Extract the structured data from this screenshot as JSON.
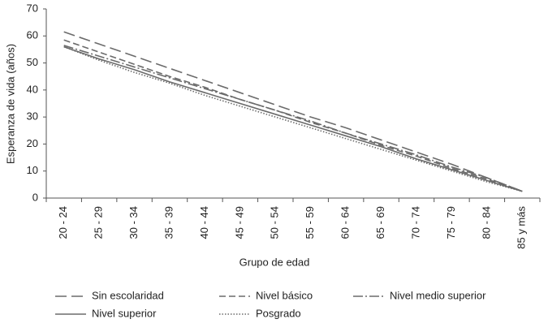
{
  "chart_data": {
    "type": "line",
    "x_label": "Grupo de edad",
    "y_label": "Esperanza de vida (años)",
    "categories": [
      "20 - 24",
      "25 - 29",
      "30 - 34",
      "35 - 39",
      "40 - 44",
      "45 - 49",
      "50 - 54",
      "55 - 59",
      "60 - 64",
      "65 - 69",
      "70 - 74",
      "75 - 79",
      "80 - 84",
      "85 y más"
    ],
    "ylim": [
      0,
      70
    ],
    "yticks": [
      0,
      10,
      20,
      30,
      40,
      50,
      60,
      70
    ],
    "grid": false,
    "legend": "bottom",
    "series": [
      {
        "name": "Sin escolaridad",
        "color": "#6b6b6b",
        "dash": "14 6",
        "values": [
          61.5,
          57,
          52.5,
          48,
          43.5,
          39,
          34.5,
          30,
          26,
          21.5,
          17,
          12.5,
          7.5,
          2.5
        ]
      },
      {
        "name": "Nivel básico",
        "color": "#6b6b6b",
        "dash": "8 4",
        "values": [
          58.5,
          54,
          49.5,
          45,
          41,
          36.5,
          32.5,
          28,
          24,
          19.5,
          15.5,
          11,
          7,
          2.5
        ]
      },
      {
        "name": "Nivel medio superior",
        "color": "#6b6b6b",
        "dash": "12 3 2 3",
        "values": [
          56.5,
          52.5,
          48.5,
          44.5,
          40.5,
          36.5,
          32.5,
          28.5,
          24,
          20,
          16,
          11.5,
          7.5,
          2.5
        ]
      },
      {
        "name": "Nivel superior",
        "color": "#6b6b6b",
        "dash": "none",
        "values": [
          56,
          51.5,
          47.5,
          43,
          39,
          35,
          31,
          27,
          23,
          19,
          14.5,
          10.5,
          6.5,
          2.5
        ]
      },
      {
        "name": "Posgrado",
        "color": "#6b6b6b",
        "dash": "1.5 2",
        "values": [
          56,
          51,
          46.5,
          42.5,
          38,
          34,
          30,
          26,
          22,
          18,
          14,
          10,
          6,
          2.5
        ]
      }
    ]
  }
}
